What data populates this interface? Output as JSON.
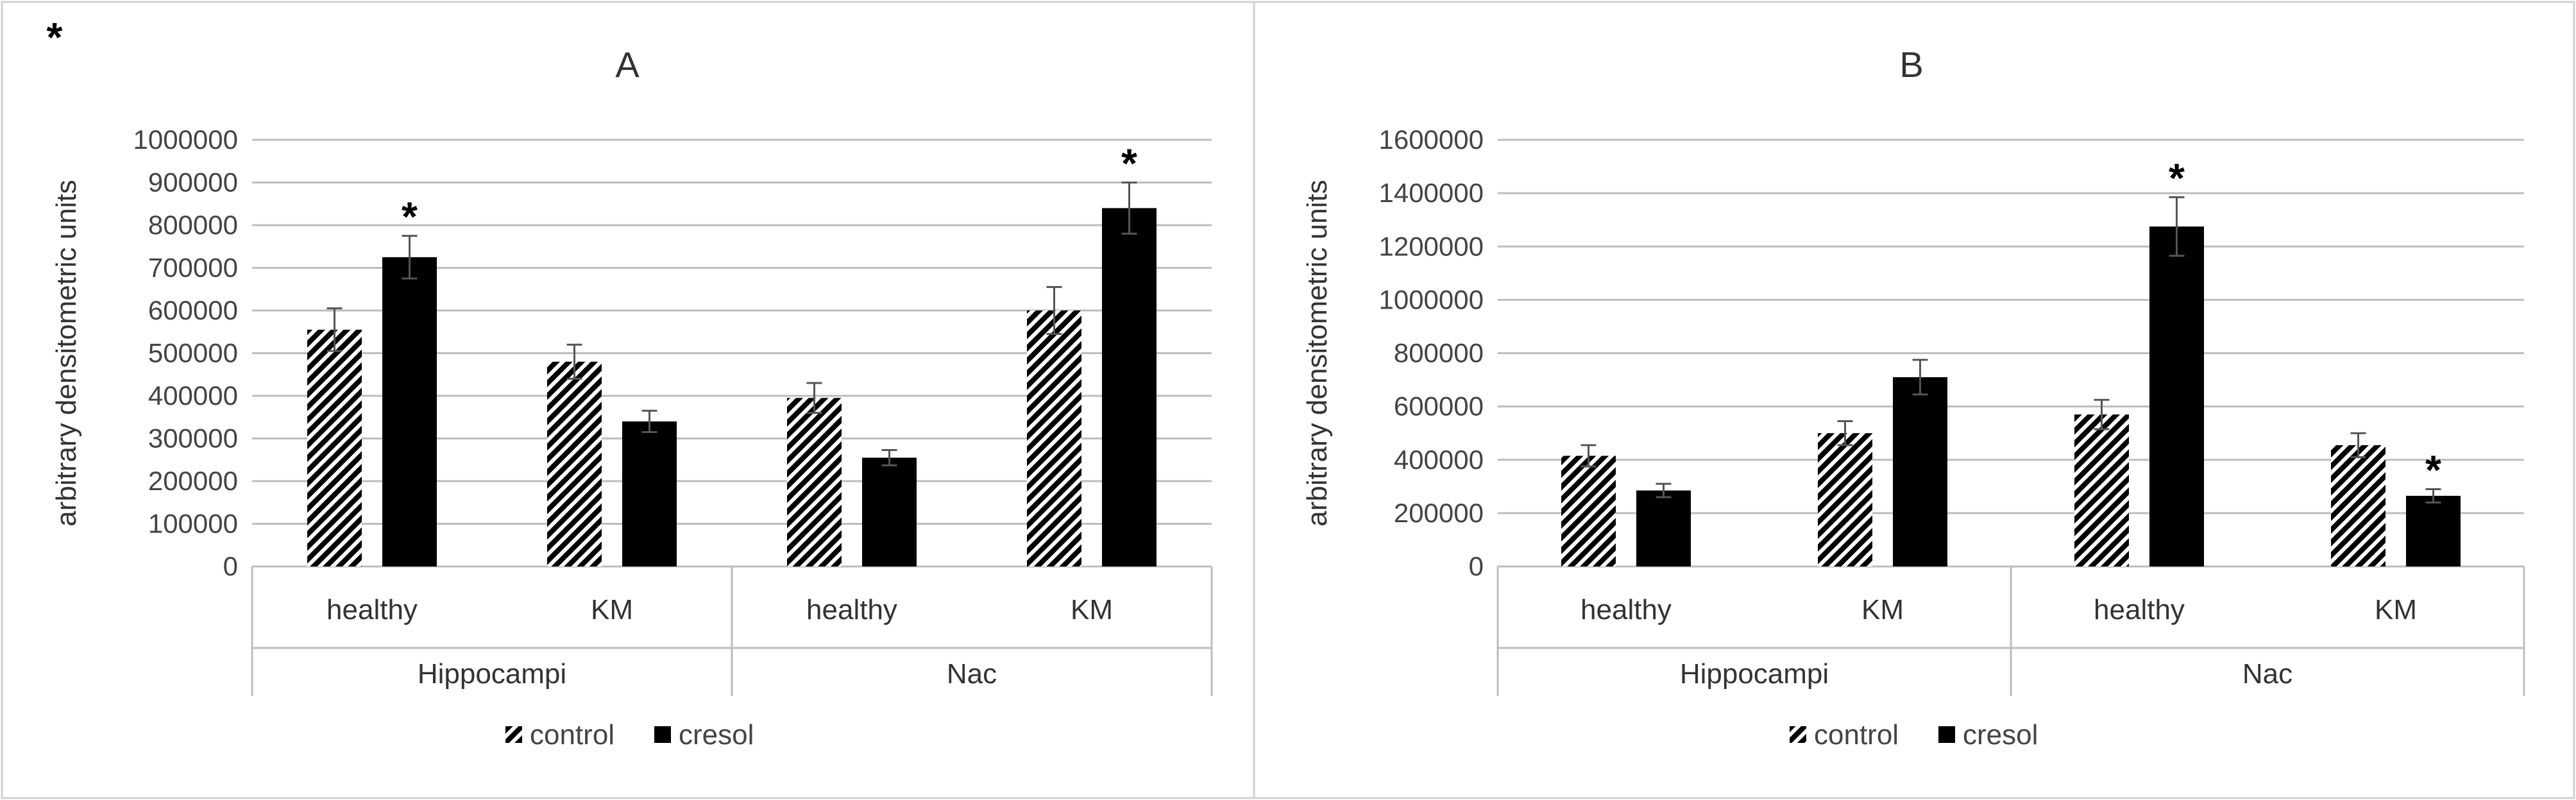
{
  "figure": {
    "corner_mark": "*"
  },
  "legend_labels": {
    "control": "control",
    "cresol": "cresol"
  },
  "chart_data": [
    {
      "type": "bar",
      "title": "A",
      "ylabel": "arbitrary densitometric units",
      "ylim": [
        0,
        1000000
      ],
      "yticks": [
        0,
        100000,
        200000,
        300000,
        400000,
        500000,
        600000,
        700000,
        800000,
        900000,
        1000000
      ],
      "grid": true,
      "legend_position": "bottom",
      "categories": [
        "healthy",
        "KM",
        "healthy",
        "KM"
      ],
      "groups": [
        {
          "label": "Hippocampi",
          "span": [
            0,
            1
          ]
        },
        {
          "label": "Nac",
          "span": [
            2,
            3
          ]
        }
      ],
      "series": [
        {
          "name": "control",
          "pattern": "hatched",
          "color": "#000000",
          "values": [
            555000,
            480000,
            395000,
            600000
          ],
          "errors": [
            50000,
            40000,
            35000,
            55000
          ]
        },
        {
          "name": "cresol",
          "pattern": "solid",
          "color": "#000000",
          "values": [
            725000,
            340000,
            255000,
            840000
          ],
          "errors": [
            50000,
            25000,
            18000,
            60000
          ]
        }
      ],
      "annotations": [
        {
          "series": 1,
          "category": 0,
          "text": "*"
        },
        {
          "series": 1,
          "category": 3,
          "text": "*"
        }
      ]
    },
    {
      "type": "bar",
      "title": "B",
      "ylabel": "arbitrary densitometric units",
      "ylim": [
        0,
        1600000
      ],
      "yticks": [
        0,
        200000,
        400000,
        600000,
        800000,
        1000000,
        1200000,
        1400000,
        1600000
      ],
      "grid": true,
      "legend_position": "bottom",
      "categories": [
        "healthy",
        "KM",
        "healthy",
        "KM"
      ],
      "groups": [
        {
          "label": "Hippocampi",
          "span": [
            0,
            1
          ]
        },
        {
          "label": "Nac",
          "span": [
            2,
            3
          ]
        }
      ],
      "series": [
        {
          "name": "control",
          "pattern": "hatched",
          "color": "#000000",
          "values": [
            415000,
            500000,
            570000,
            455000
          ],
          "errors": [
            40000,
            45000,
            55000,
            45000
          ]
        },
        {
          "name": "cresol",
          "pattern": "solid",
          "color": "#000000",
          "values": [
            285000,
            710000,
            1275000,
            265000
          ],
          "errors": [
            25000,
            65000,
            110000,
            25000
          ]
        }
      ],
      "annotations": [
        {
          "series": 1,
          "category": 2,
          "text": "*"
        },
        {
          "series": 1,
          "category": 3,
          "text": "*"
        }
      ]
    }
  ]
}
